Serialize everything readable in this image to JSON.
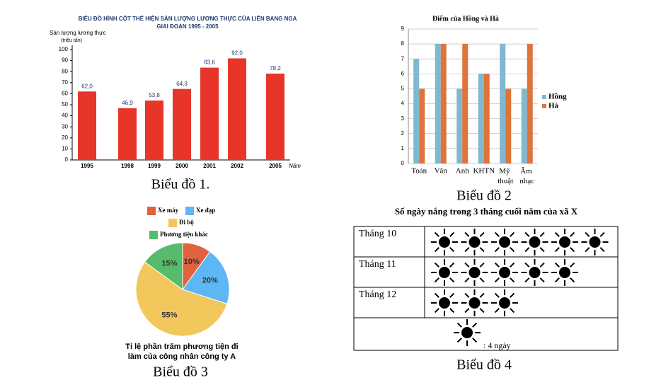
{
  "chart_data": [
    {
      "type": "bar",
      "title": "BIỂU ĐỒ HÌNH CỘT THỂ HIỆN SẢN LƯỢNG LƯƠNG THỰC CỦA LIÊN BANG NGA",
      "subtitle": "GIAI ĐOẠN 1995 - 2005",
      "ylabel": "Sản lượng lương thực",
      "yunit": "(triệu tấn)",
      "xlabel": "Năm",
      "categories": [
        "1995",
        "1998",
        "1999",
        "2000",
        "2001",
        "2002",
        "2005"
      ],
      "values": [
        62.0,
        46.9,
        53.8,
        64.3,
        83.6,
        92.0,
        78.2
      ],
      "value_labels": [
        "62,0",
        "46,9",
        "53,8",
        "64,3",
        "83,6",
        "92,0",
        "78,2"
      ],
      "color": "#e8352a",
      "ylim": [
        0,
        100
      ],
      "yticks": [
        0,
        10,
        20,
        30,
        40,
        50,
        60,
        70,
        80,
        90,
        100
      ]
    },
    {
      "type": "grouped-bar",
      "title": "Điểm của Hồng và Hà",
      "categories": [
        "Toán",
        "Văn",
        "Anh",
        "KHTN",
        "Mỹ thuật",
        "Âm nhạc"
      ],
      "series": [
        {
          "name": "Hồng",
          "color": "#7fb8cf",
          "values": [
            7,
            8,
            5,
            6,
            8,
            5
          ]
        },
        {
          "name": "Hà",
          "color": "#e0733a",
          "values": [
            5,
            8,
            8,
            6,
            5,
            8
          ]
        }
      ],
      "ylim": [
        0,
        9
      ],
      "yticks": [
        0,
        1,
        2,
        3,
        4,
        5,
        6,
        7,
        8,
        9
      ],
      "grid": true,
      "legend": "right"
    },
    {
      "type": "pie",
      "title": [
        "Tỉ lệ phần trăm phương tiện đi",
        "làm của công nhân công ty A"
      ],
      "categories": [
        "Xe máy",
        "Xe đạp",
        "Đi bộ",
        "Phương tiện khác"
      ],
      "values": [
        10,
        20,
        55,
        15
      ],
      "value_labels": [
        "10%",
        "20%",
        "55%",
        "15%"
      ],
      "colors": [
        "#e0623e",
        "#5fb6f5",
        "#f2c75c",
        "#56bb6a"
      ],
      "legend": "top"
    },
    {
      "type": "pictograph",
      "title": "Số ngày nắng trong 3 tháng cuối năm của xã X",
      "categories": [
        "Tháng 10",
        "Tháng 11",
        "Tháng 12"
      ],
      "values": [
        6,
        5,
        3
      ],
      "key_label": ": 4 ngày"
    }
  ],
  "captions": [
    "Biểu đồ 1.",
    "Biểu đồ 2",
    "Biểu đồ 3",
    "Biểu đồ 4"
  ]
}
